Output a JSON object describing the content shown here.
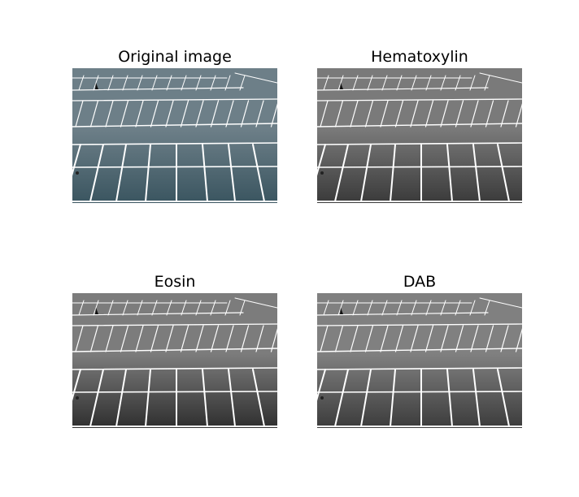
{
  "figure": {
    "panels": [
      {
        "title": "Original image",
        "tint": "color",
        "base_color": "#3a5560",
        "far_color": "#6d7f88"
      },
      {
        "title": "Hematoxylin",
        "tint": "gray",
        "base_color": "#3a3a3a",
        "far_color": "#7a7a7a"
      },
      {
        "title": "Eosin",
        "tint": "gray",
        "base_color": "#2f2f2f",
        "far_color": "#7c7c7c"
      },
      {
        "title": "DAB",
        "tint": "gray",
        "base_color": "#3c3c3c",
        "far_color": "#808080"
      }
    ]
  }
}
